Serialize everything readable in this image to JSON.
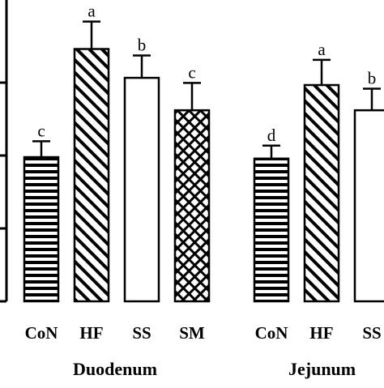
{
  "chart_data": {
    "type": "bar",
    "title": "",
    "xlabel": "",
    "ylabel": "",
    "ylim": [
      0,
      4.1
    ],
    "grid": false,
    "legend": "none",
    "groups": [
      {
        "name": "Duodenum",
        "bars": [
          {
            "category": "CoN",
            "value": 2.0,
            "error": 0.22,
            "sig": "c",
            "pattern": "horizontal-stripes"
          },
          {
            "category": "HF",
            "value": 3.5,
            "error": 0.38,
            "sig": "a",
            "pattern": "diagonal-stripes"
          },
          {
            "category": "SS",
            "value": 3.1,
            "error": 0.31,
            "sig": "b",
            "pattern": "none"
          },
          {
            "category": "SM",
            "value": 2.65,
            "error": 0.38,
            "sig": "c",
            "pattern": "crosshatch"
          }
        ]
      },
      {
        "name": "Jejunum",
        "bars": [
          {
            "category": "CoN",
            "value": 1.98,
            "error": 0.18,
            "sig": "d",
            "pattern": "horizontal-stripes"
          },
          {
            "category": "HF",
            "value": 3.0,
            "error": 0.35,
            "sig": "a",
            "pattern": "diagonal-stripes"
          },
          {
            "category": "SS",
            "value": 2.65,
            "error": 0.3,
            "sig": "b",
            "pattern": "none"
          }
        ]
      }
    ],
    "colors": {
      "stroke": "#000000",
      "fill": "#ffffff"
    }
  }
}
